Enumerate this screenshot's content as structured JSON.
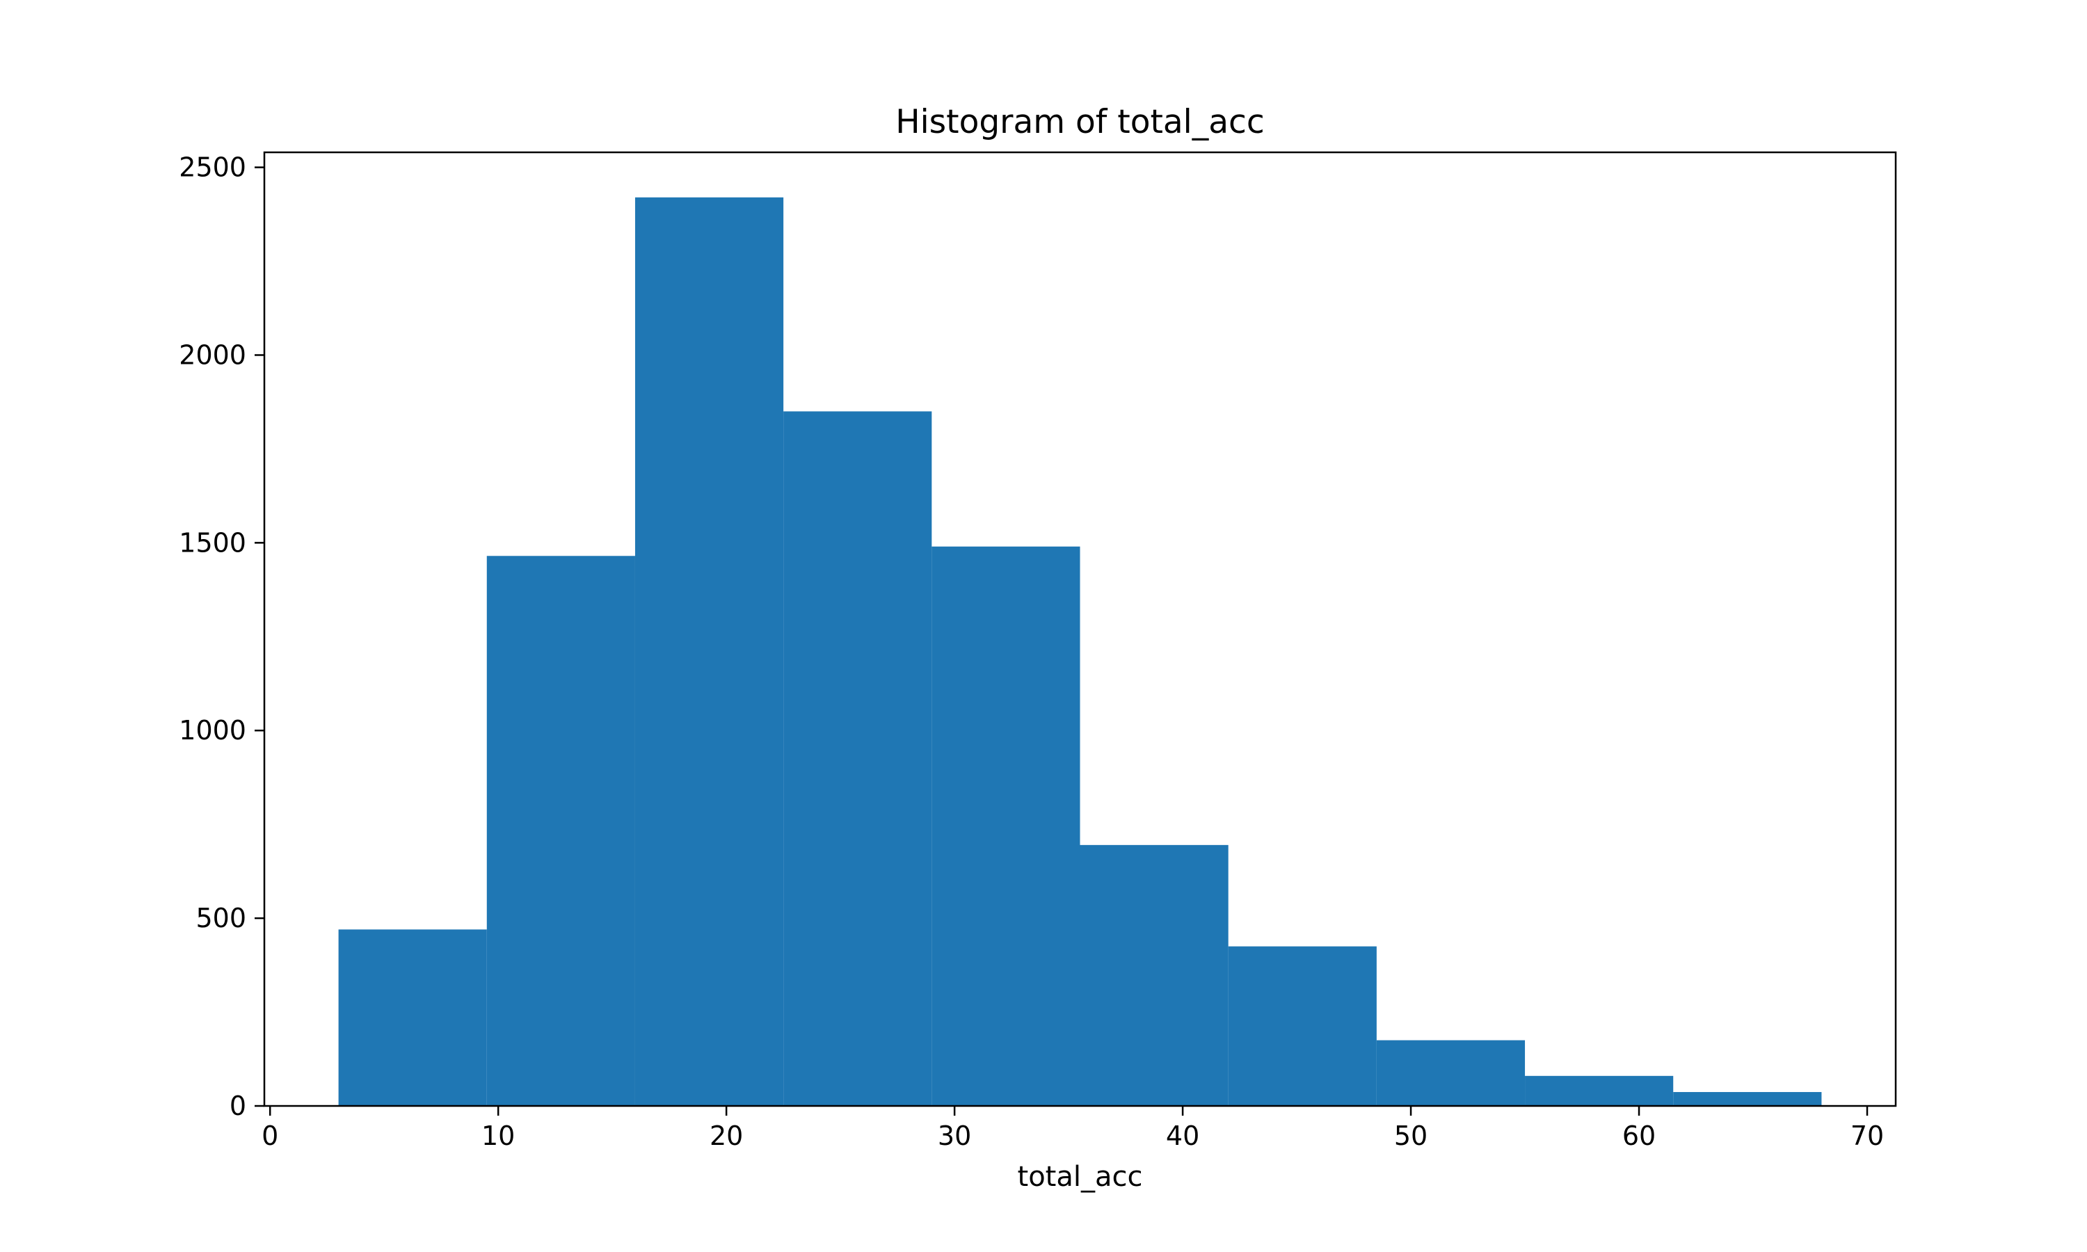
{
  "chart_data": {
    "type": "bar",
    "title": "Histogram of total_acc",
    "xlabel": "total_acc",
    "ylabel": "",
    "bin_edges": [
      3.0,
      9.5,
      16.0,
      22.5,
      29.0,
      35.5,
      42.0,
      48.5,
      55.0,
      61.5,
      68.0
    ],
    "values": [
      470,
      1465,
      2420,
      1850,
      1490,
      695,
      425,
      175,
      80,
      37
    ],
    "xlim": [
      -0.25,
      71.25
    ],
    "ylim": [
      0,
      2540
    ],
    "x_ticks": [
      0,
      10,
      20,
      30,
      40,
      50,
      60,
      70
    ],
    "y_ticks": [
      0,
      500,
      1000,
      1500,
      2000,
      2500
    ],
    "x_tick_labels": [
      "0",
      "10",
      "20",
      "30",
      "40",
      "50",
      "60",
      "70"
    ],
    "y_tick_labels": [
      "0",
      "500",
      "1000",
      "1500",
      "2000",
      "2500"
    ],
    "bar_color": "#1f77b4",
    "grid": false,
    "legend": false
  }
}
